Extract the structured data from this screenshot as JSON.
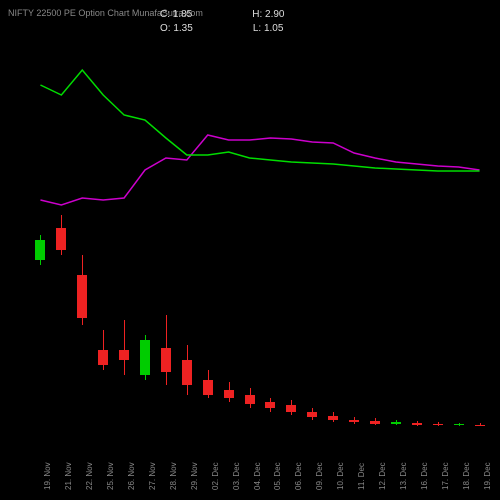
{
  "header": {
    "title": "NIFTY 22500 PE Option Chart MunafaSutra.com",
    "close_label": "C:",
    "close_value": "1.85",
    "open_label": "O:",
    "open_value": "1.35",
    "high_label": "H:",
    "high_value": "2.90",
    "low_label": "L:",
    "low_value": "1.05"
  },
  "chart": {
    "type": "candlestick",
    "background": "#000000",
    "up_color": "#00cc00",
    "down_color": "#ee2222",
    "line1_color": "#cc00cc",
    "line2_color": "#00dd00",
    "text_color": "#888888",
    "x_labels": [
      "19. Nov",
      "21. Nov",
      "22. Nov",
      "25. Nov",
      "26. Nov",
      "27. Nov",
      "28. Nov",
      "29. Nov",
      "02. Dec",
      "03. Dec",
      "04. Dec",
      "05. Dec",
      "06. Dec",
      "09. Dec",
      "10. Dec",
      "11. Dec",
      "12. Dec",
      "13. Dec",
      "16. Dec",
      "17. Dec",
      "18. Dec",
      "19. Dec"
    ],
    "line1_points": [
      160,
      165,
      158,
      160,
      158,
      130,
      118,
      120,
      95,
      100,
      100,
      98,
      99,
      102,
      103,
      113,
      118,
      122,
      124,
      126,
      127,
      130
    ],
    "line2_points": [
      45,
      55,
      30,
      55,
      75,
      80,
      98,
      115,
      115,
      112,
      118,
      120,
      122,
      123,
      124,
      126,
      128,
      129,
      130,
      131,
      131,
      131
    ],
    "candles": [
      {
        "open": 220,
        "close": 200,
        "high": 195,
        "low": 225,
        "dir": "up"
      },
      {
        "open": 188,
        "close": 210,
        "high": 175,
        "low": 215,
        "dir": "down"
      },
      {
        "open": 235,
        "close": 278,
        "high": 215,
        "low": 285,
        "dir": "down"
      },
      {
        "open": 310,
        "close": 325,
        "high": 290,
        "low": 330,
        "dir": "down"
      },
      {
        "open": 310,
        "close": 320,
        "high": 280,
        "low": 335,
        "dir": "down"
      },
      {
        "open": 335,
        "close": 300,
        "high": 295,
        "low": 340,
        "dir": "up"
      },
      {
        "open": 308,
        "close": 332,
        "high": 275,
        "low": 345,
        "dir": "down"
      },
      {
        "open": 320,
        "close": 345,
        "high": 305,
        "low": 355,
        "dir": "down"
      },
      {
        "open": 340,
        "close": 355,
        "high": 330,
        "low": 358,
        "dir": "down"
      },
      {
        "open": 350,
        "close": 358,
        "high": 342,
        "low": 362,
        "dir": "down"
      },
      {
        "open": 355,
        "close": 364,
        "high": 348,
        "low": 368,
        "dir": "down"
      },
      {
        "open": 362,
        "close": 368,
        "high": 358,
        "low": 372,
        "dir": "down"
      },
      {
        "open": 365,
        "close": 372,
        "high": 360,
        "low": 375,
        "dir": "down"
      },
      {
        "open": 372,
        "close": 377,
        "high": 368,
        "low": 380,
        "dir": "down"
      },
      {
        "open": 376,
        "close": 380,
        "high": 372,
        "low": 382,
        "dir": "down"
      },
      {
        "open": 380,
        "close": 382,
        "high": 377,
        "low": 384,
        "dir": "down"
      },
      {
        "open": 381,
        "close": 384,
        "high": 378,
        "low": 385,
        "dir": "down"
      },
      {
        "open": 384,
        "close": 382,
        "high": 380,
        "low": 385,
        "dir": "up"
      },
      {
        "open": 383,
        "close": 385,
        "high": 381,
        "low": 386,
        "dir": "down"
      },
      {
        "open": 384,
        "close": 385,
        "high": 382,
        "low": 386,
        "dir": "down"
      },
      {
        "open": 385,
        "close": 384,
        "high": 383,
        "low": 386,
        "dir": "up"
      },
      {
        "open": 385,
        "close": 386,
        "high": 383,
        "low": 386,
        "dir": "down"
      }
    ]
  }
}
